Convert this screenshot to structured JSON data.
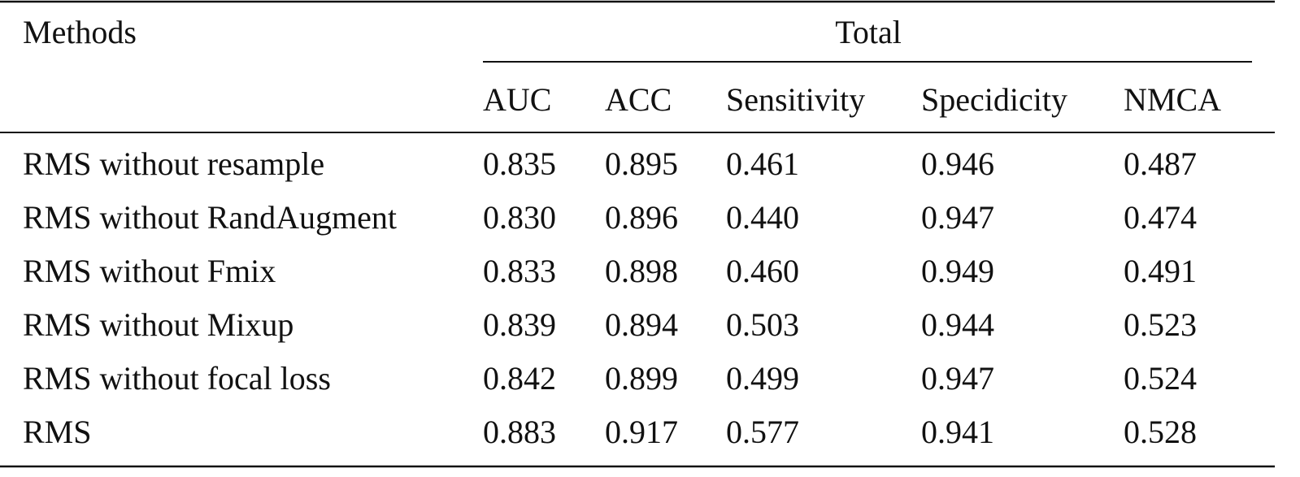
{
  "table": {
    "header": {
      "methods": "Methods",
      "group": "Total",
      "columns": [
        "AUC",
        "ACC",
        "Sensitivity",
        "Specidicity",
        "NMCA"
      ]
    },
    "rows": [
      [
        "RMS without resample",
        "0.835",
        "0.895",
        "0.461",
        "0.946",
        "0.487"
      ],
      [
        "RMS without RandAugment",
        "0.830",
        "0.896",
        "0.440",
        "0.947",
        "0.474"
      ],
      [
        "RMS without Fmix",
        "0.833",
        "0.898",
        "0.460",
        "0.949",
        "0.491"
      ],
      [
        "RMS without Mixup",
        "0.839",
        "0.894",
        "0.503",
        "0.944",
        "0.523"
      ],
      [
        "RMS without focal loss",
        "0.842",
        "0.899",
        "0.499",
        "0.947",
        "0.524"
      ],
      [
        "RMS",
        "0.883",
        "0.917",
        "0.577",
        "0.941",
        "0.528"
      ]
    ]
  }
}
